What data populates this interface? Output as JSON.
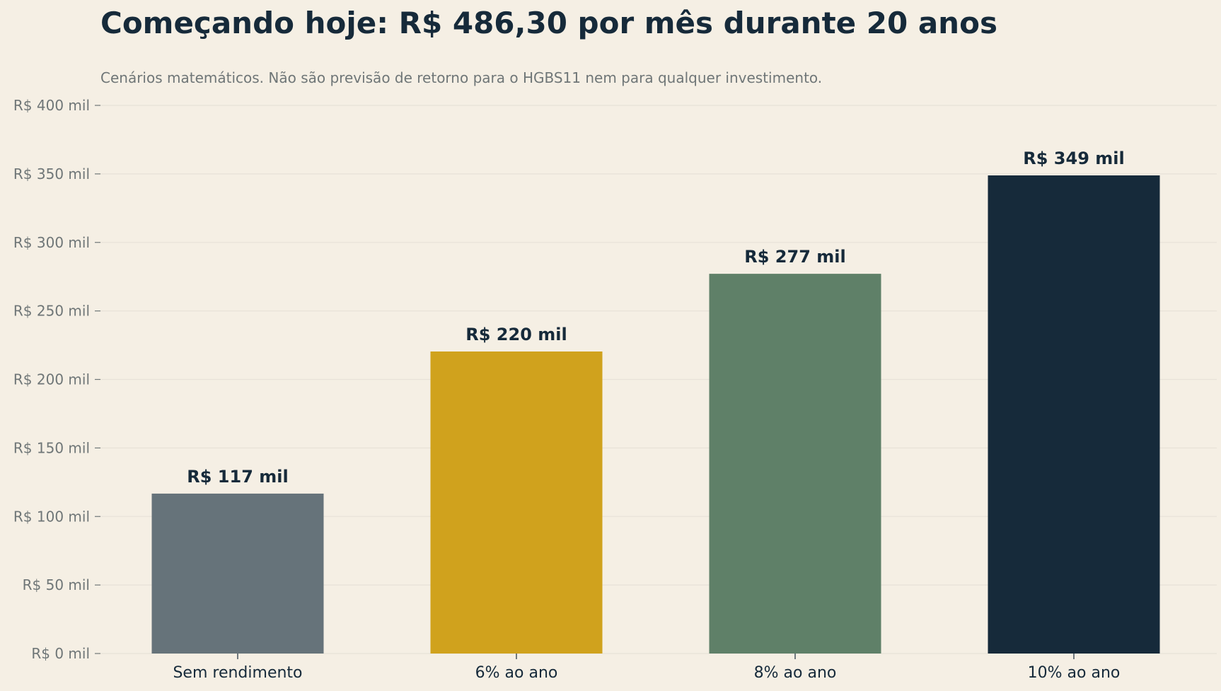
{
  "chart_data": {
    "type": "bar",
    "title": "Começando hoje: R$ 486,30 por mês durante 20 anos",
    "subtitle": "Cenários matemáticos. Não são previsão de retorno para o HGBS11 nem para qualquer investimento.",
    "xlabel": "",
    "ylabel": "",
    "categories": [
      "Sem rendimento",
      "6% ao ano",
      "8% ao ano",
      "10% ao ano"
    ],
    "values": [
      116.7,
      220.4,
      277.1,
      348.9
    ],
    "value_labels": [
      "R$ 117 mil",
      "R$ 220 mil",
      "R$ 277 mil",
      "R$ 349 mil"
    ],
    "bar_colors": [
      "#66737a",
      "#d0a21d",
      "#5f8068",
      "#162a3a"
    ],
    "ylim": [
      0,
      400
    ],
    "yticks": [
      0,
      50,
      100,
      150,
      200,
      250,
      300,
      350,
      400
    ],
    "ytick_labels": [
      "R$ 0 mil",
      "R$ 50 mil",
      "R$ 100 mil",
      "R$ 150 mil",
      "R$ 200 mil",
      "R$ 250 mil",
      "R$ 300 mil",
      "R$ 350 mil",
      "R$ 400 mil"
    ],
    "grid": true,
    "legend": "none"
  },
  "colors": {
    "background": "#f5efe4",
    "text_dark": "#162a3a",
    "text_muted": "#6f7677",
    "grid": "#e8e2d8"
  }
}
